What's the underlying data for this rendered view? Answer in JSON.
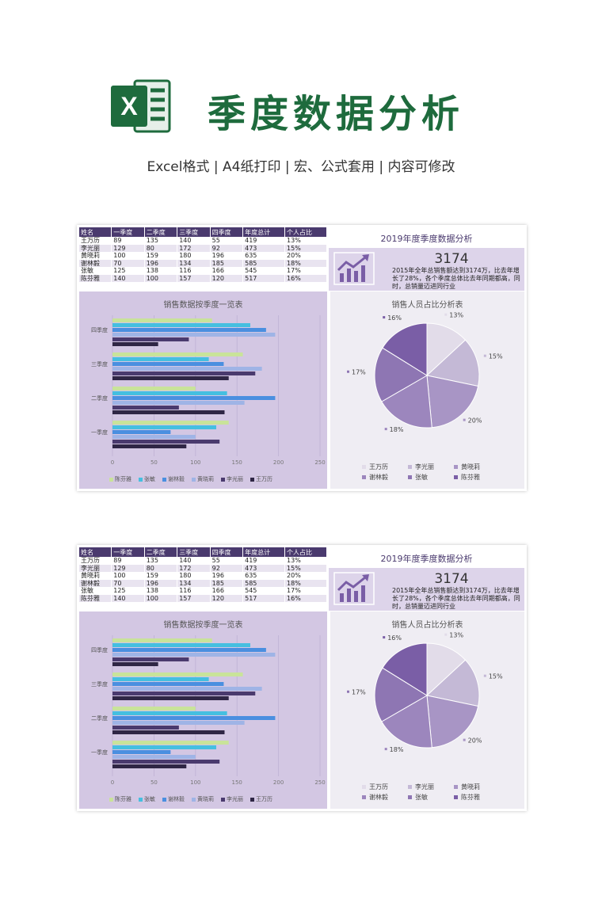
{
  "header": {
    "title": "季度数据分析",
    "subtitle": "Excel格式 |  A4纸打印 | 宏、公式套用 | 内容可修改",
    "logo_letter": "X"
  },
  "table": {
    "headers": [
      "姓名",
      "一季度",
      "二季度",
      "三季度",
      "四季度",
      "年度总计",
      "个人占比"
    ],
    "rows": [
      [
        "王万历",
        "89",
        "135",
        "140",
        "55",
        "419",
        "13%"
      ],
      [
        "李光丽",
        "129",
        "80",
        "172",
        "92",
        "473",
        "15%"
      ],
      [
        "黄晓莉",
        "100",
        "159",
        "180",
        "196",
        "635",
        "20%"
      ],
      [
        "谢林毅",
        "70",
        "196",
        "134",
        "185",
        "585",
        "18%"
      ],
      [
        "张敏",
        "125",
        "138",
        "116",
        "166",
        "545",
        "17%"
      ],
      [
        "陈芬雅",
        "140",
        "100",
        "157",
        "120",
        "517",
        "16%"
      ]
    ]
  },
  "kpi": {
    "title": "2019年度季度数据分析",
    "value": "3174",
    "description": "2015年全年总销售额达到3174万，比去年增长了28%，各个季度总体比去年同期都高，同时，总销量迈进同行业"
  },
  "bar_chart_title": "销售数据按季度一览表",
  "pie_chart_title": "销售人员占比分析表",
  "colors": {
    "header_bg": "#4a3a6e",
    "title_green": "#1e6b3d",
    "bar_panel_bg": "#d3c7e3",
    "pie_panel_bg": "#efedf3"
  },
  "chart_data": [
    {
      "type": "bar",
      "orientation": "horizontal",
      "title": "销售数据按季度一览表",
      "categories": [
        "一季度",
        "二季度",
        "三季度",
        "四季度"
      ],
      "xlim": [
        0,
        250
      ],
      "xticks": [
        0,
        50,
        100,
        150,
        200,
        250
      ],
      "series": [
        {
          "name": "王万历",
          "values": [
            89,
            135,
            140,
            55
          ],
          "color": "#2f2645"
        },
        {
          "name": "李光丽",
          "values": [
            129,
            80,
            172,
            92
          ],
          "color": "#4a3a6e"
        },
        {
          "name": "黄晓莉",
          "values": [
            100,
            159,
            180,
            196
          ],
          "color": "#9fb4e6"
        },
        {
          "name": "谢林毅",
          "values": [
            70,
            196,
            134,
            185
          ],
          "color": "#4a8fe0"
        },
        {
          "name": "张敏",
          "values": [
            125,
            138,
            116,
            166
          ],
          "color": "#45bfe0"
        },
        {
          "name": "陈芬雅",
          "values": [
            140,
            100,
            157,
            120
          ],
          "color": "#c9e39a"
        }
      ],
      "legend": "bottom",
      "grid": true
    },
    {
      "type": "pie",
      "title": "销售人员占比分析表",
      "labels": [
        "王万历",
        "李光丽",
        "黄晓莉",
        "谢林毅",
        "张敏",
        "陈芬雅"
      ],
      "values": [
        13,
        15,
        20,
        18,
        17,
        16
      ],
      "value_labels": [
        "13%",
        "15%",
        "20%",
        "18%",
        "17%",
        "16%"
      ],
      "colors": [
        "#e2dce9",
        "#c4b9d6",
        "#a895c5",
        "#9c86bd",
        "#8e76b3",
        "#7a5ea6"
      ],
      "legend": "bottom"
    }
  ]
}
